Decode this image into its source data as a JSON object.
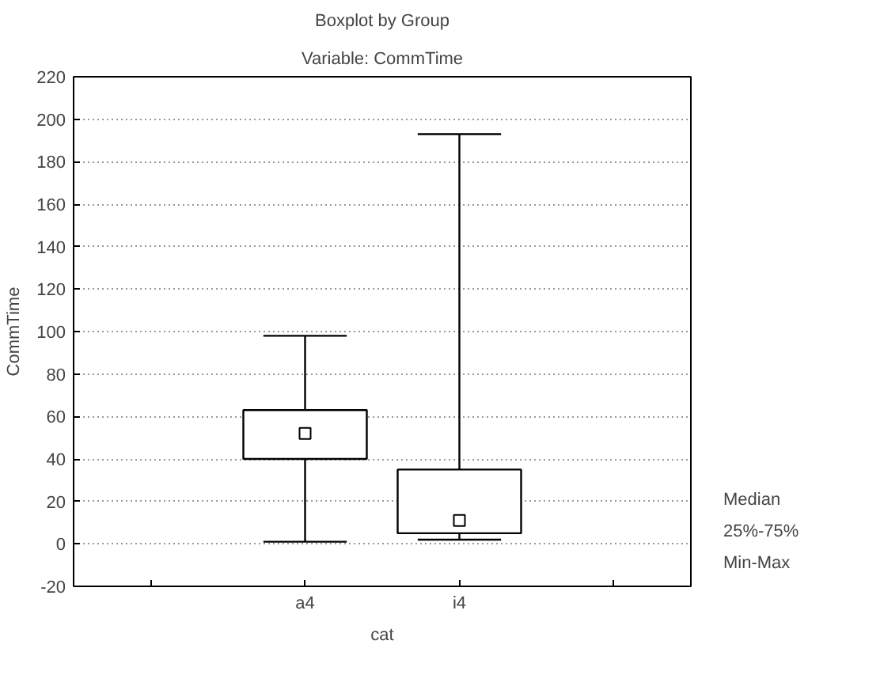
{
  "chart_data": {
    "type": "box",
    "title": "Boxplot by Group",
    "subtitle": "Variable: CommTime",
    "xlabel": "cat",
    "ylabel": "CommTime",
    "categories": [
      "a4",
      "i4"
    ],
    "boxes": [
      {
        "low": 1,
        "q1": 40,
        "median": 52,
        "q3": 63,
        "high": 98
      },
      {
        "low": 2,
        "q1": 5,
        "median": 11,
        "q3": 35,
        "high": 193
      }
    ],
    "ylim": [
      -20,
      220
    ],
    "yticks": [
      -20,
      0,
      20,
      40,
      60,
      80,
      100,
      120,
      140,
      160,
      180,
      200,
      220
    ],
    "grid": "y",
    "marker": "square",
    "annotations": [
      "Median",
      "25%-75%",
      "Min-Max"
    ]
  }
}
